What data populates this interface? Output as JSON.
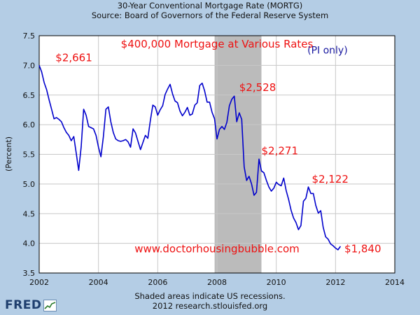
{
  "header": {
    "title": "30-Year Conventional Mortgage Rate (MORTG)",
    "source": "Source: Board of Governors of the Federal Reserve System"
  },
  "footer": {
    "recession_note": "Shaded areas indicate US recessions.",
    "copyright": "2012 research.stlouisfed.org",
    "logo_text": "FRED"
  },
  "chart_data": {
    "type": "line",
    "title": "30-Year Conventional Mortgage Rate (MORTG)",
    "subtitle": "Source: Board of Governors of the Federal Reserve System",
    "xlabel": "",
    "ylabel": "(Percent)",
    "xlim": [
      2002,
      2014
    ],
    "ylim": [
      3.5,
      7.5
    ],
    "x_ticks": [
      "2002",
      "2004",
      "2006",
      "2008",
      "2010",
      "2012",
      "2014"
    ],
    "y_ticks": [
      "3.5",
      "4.0",
      "4.5",
      "5.0",
      "5.5",
      "6.0",
      "6.5",
      "7.0",
      "7.5"
    ],
    "grid": true,
    "line_color": "#0000cc",
    "recession": {
      "start": 2007.92,
      "end": 2009.5,
      "color": "#bbbbbb"
    },
    "series": [
      {
        "name": "MORTG",
        "x": [
          2002.0,
          2002.083,
          2002.167,
          2002.25,
          2002.333,
          2002.417,
          2002.5,
          2002.583,
          2002.667,
          2002.75,
          2002.833,
          2002.917,
          2003.0,
          2003.083,
          2003.167,
          2003.25,
          2003.333,
          2003.417,
          2003.5,
          2003.583,
          2003.667,
          2003.75,
          2003.833,
          2003.917,
          2004.0,
          2004.083,
          2004.167,
          2004.25,
          2004.333,
          2004.417,
          2004.5,
          2004.583,
          2004.667,
          2004.75,
          2004.833,
          2004.917,
          2005.0,
          2005.083,
          2005.167,
          2005.25,
          2005.333,
          2005.417,
          2005.5,
          2005.583,
          2005.667,
          2005.75,
          2005.833,
          2005.917,
          2006.0,
          2006.083,
          2006.167,
          2006.25,
          2006.333,
          2006.417,
          2006.5,
          2006.583,
          2006.667,
          2006.75,
          2006.833,
          2006.917,
          2007.0,
          2007.083,
          2007.167,
          2007.25,
          2007.333,
          2007.417,
          2007.5,
          2007.583,
          2007.667,
          2007.75,
          2007.833,
          2007.917,
          2008.0,
          2008.083,
          2008.167,
          2008.25,
          2008.333,
          2008.417,
          2008.5,
          2008.583,
          2008.667,
          2008.75,
          2008.833,
          2008.917,
          2009.0,
          2009.083,
          2009.167,
          2009.25,
          2009.333,
          2009.417,
          2009.5,
          2009.583,
          2009.667,
          2009.75,
          2009.833,
          2009.917,
          2010.0,
          2010.083,
          2010.167,
          2010.25,
          2010.333,
          2010.417,
          2010.5,
          2010.583,
          2010.667,
          2010.75,
          2010.833,
          2010.917,
          2011.0,
          2011.083,
          2011.167,
          2011.25,
          2011.333,
          2011.417,
          2011.5,
          2011.583,
          2011.667,
          2011.75,
          2011.833,
          2011.917,
          2012.0,
          2012.083,
          2012.167
        ],
        "values": [
          7.0,
          6.89,
          6.71,
          6.59,
          6.42,
          6.26,
          6.1,
          6.12,
          6.09,
          6.05,
          5.95,
          5.87,
          5.82,
          5.73,
          5.8,
          5.52,
          5.23,
          5.63,
          6.26,
          6.16,
          5.97,
          5.95,
          5.93,
          5.82,
          5.62,
          5.46,
          5.8,
          6.26,
          6.3,
          6.05,
          5.87,
          5.76,
          5.73,
          5.72,
          5.73,
          5.75,
          5.71,
          5.62,
          5.93,
          5.86,
          5.72,
          5.58,
          5.7,
          5.82,
          5.77,
          6.07,
          6.33,
          6.3,
          6.16,
          6.25,
          6.32,
          6.51,
          6.6,
          6.68,
          6.52,
          6.4,
          6.37,
          6.23,
          6.15,
          6.21,
          6.29,
          6.16,
          6.18,
          6.33,
          6.37,
          6.66,
          6.7,
          6.57,
          6.38,
          6.38,
          6.21,
          6.1,
          5.76,
          5.92,
          5.97,
          5.92,
          6.04,
          6.32,
          6.43,
          6.48,
          6.05,
          6.2,
          6.09,
          5.29,
          5.06,
          5.13,
          5.0,
          4.81,
          4.86,
          5.42,
          5.22,
          5.19,
          5.06,
          4.95,
          4.88,
          4.93,
          5.03,
          4.99,
          4.97,
          5.1,
          4.89,
          4.74,
          4.56,
          4.43,
          4.35,
          4.23,
          4.3,
          4.71,
          4.76,
          4.95,
          4.84,
          4.84,
          4.64,
          4.51,
          4.55,
          4.27,
          4.11,
          4.07,
          3.99,
          3.96,
          3.92,
          3.89,
          3.95
        ]
      }
    ],
    "annotations": [
      {
        "text": "$400,000 Mortgage at Various Rates",
        "x": 2008.0,
        "y": 7.3,
        "color": "#ee1111"
      },
      {
        "text": "(PI only)",
        "x": 2011.05,
        "y": 7.2,
        "color": "#1a1aa0"
      },
      {
        "text": "$2,661",
        "x": 2002.55,
        "y": 7.07,
        "color": "#ee1111"
      },
      {
        "text": "$2,528",
        "x": 2008.75,
        "y": 6.57,
        "color": "#ee1111"
      },
      {
        "text": "$2,271",
        "x": 2009.5,
        "y": 5.5,
        "color": "#ee1111"
      },
      {
        "text": "$2,122",
        "x": 2011.2,
        "y": 5.02,
        "color": "#ee1111"
      },
      {
        "text": "$1,840",
        "x": 2012.3,
        "y": 3.85,
        "color": "#ee1111"
      },
      {
        "text": "www.doctorhousingbubble.com",
        "x": 2008.0,
        "y": 3.85,
        "color": "#ee1111"
      }
    ]
  }
}
